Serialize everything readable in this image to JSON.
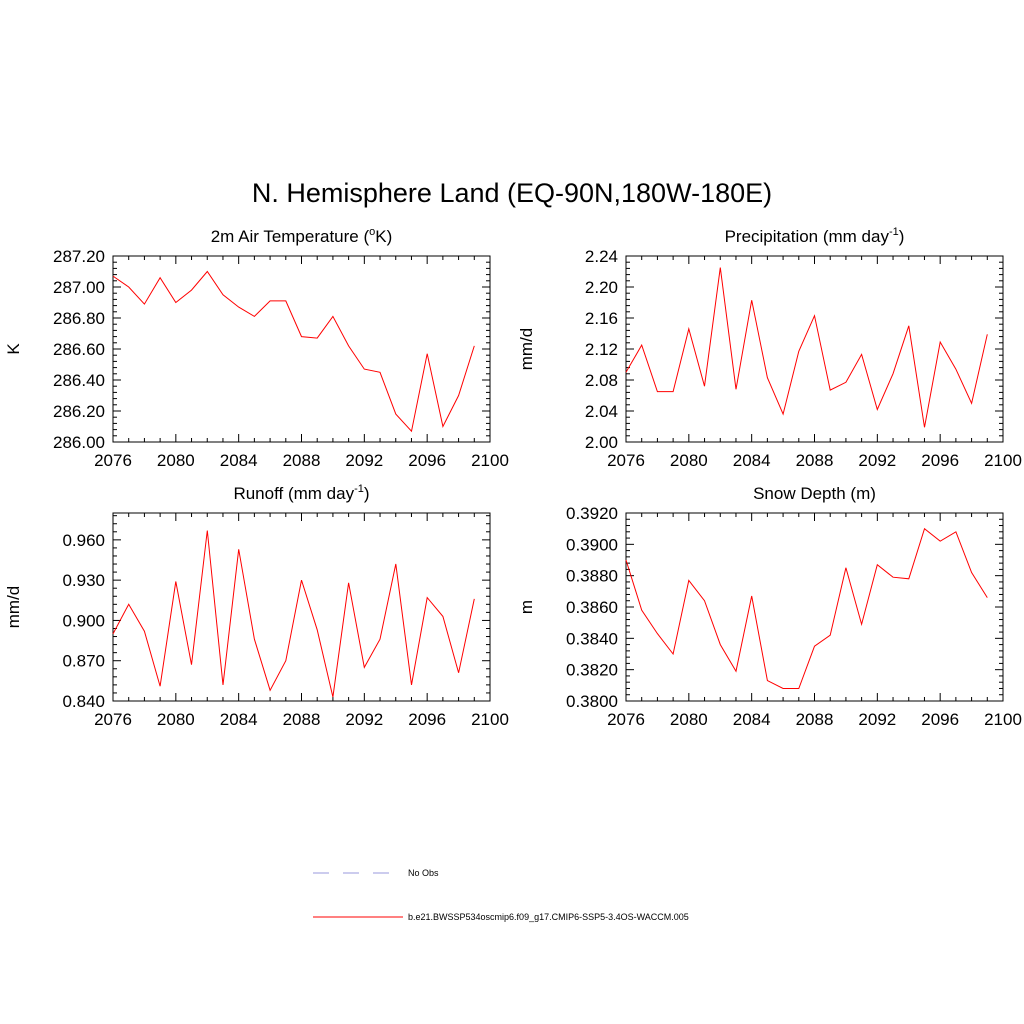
{
  "figure_title": "N. Hemisphere Land (EQ-90N,180W-180E)",
  "colors": {
    "model": "#ff0000",
    "obs": "#9999dd",
    "axis": "#000000"
  },
  "legend": {
    "obs_label": "No Obs",
    "model_label": "b.e21.BWSSP534oscmip6.f09_g17.CMIP6-SSP5-3.4OS-WACCM.005"
  },
  "chart_data": [
    {
      "type": "line",
      "title_main": "2m Air Temperature (",
      "title_sup": "o",
      "title_end": "K)",
      "ylabel": "K",
      "xlim": [
        2076,
        2100
      ],
      "ylim": [
        286.0,
        287.2
      ],
      "x_ticks": [
        2076,
        2080,
        2084,
        2088,
        2092,
        2096,
        2100
      ],
      "x_tick_labels": [
        "2076",
        "2080",
        "2084",
        "2088",
        "2092",
        "2096",
        "2100"
      ],
      "y_ticks": [
        286.0,
        286.2,
        286.4,
        286.6,
        286.8,
        287.0,
        287.2
      ],
      "y_tick_labels": [
        "286.00",
        "286.20",
        "286.40",
        "286.60",
        "286.80",
        "287.00",
        "287.20"
      ],
      "x": [
        2076,
        2077,
        2078,
        2079,
        2080,
        2081,
        2082,
        2083,
        2084,
        2085,
        2086,
        2087,
        2088,
        2089,
        2090,
        2091,
        2092,
        2093,
        2094,
        2095,
        2096,
        2097,
        2098,
        2099
      ],
      "y": [
        287.07,
        287.0,
        286.89,
        287.06,
        286.9,
        286.98,
        287.1,
        286.95,
        286.87,
        286.81,
        286.91,
        286.91,
        286.68,
        286.67,
        286.81,
        286.62,
        286.47,
        286.45,
        286.18,
        286.07,
        286.57,
        286.1,
        286.3,
        286.62
      ]
    },
    {
      "type": "line",
      "title_main": "Precipitation (mm day",
      "title_sup": "-1",
      "title_end": ")",
      "ylabel": "mm/d",
      "xlim": [
        2076,
        2100
      ],
      "ylim": [
        2.0,
        2.24
      ],
      "x_ticks": [
        2076,
        2080,
        2084,
        2088,
        2092,
        2096,
        2100
      ],
      "x_tick_labels": [
        "2076",
        "2080",
        "2084",
        "2088",
        "2092",
        "2096",
        "2100"
      ],
      "y_ticks": [
        2.0,
        2.04,
        2.08,
        2.12,
        2.16,
        2.2,
        2.24
      ],
      "y_tick_labels": [
        "2.00",
        "2.04",
        "2.08",
        "2.12",
        "2.16",
        "2.20",
        "2.24"
      ],
      "x": [
        2076,
        2077,
        2078,
        2079,
        2080,
        2081,
        2082,
        2083,
        2084,
        2085,
        2086,
        2087,
        2088,
        2089,
        2090,
        2091,
        2092,
        2093,
        2094,
        2095,
        2096,
        2097,
        2098,
        2099
      ],
      "y": [
        2.09,
        2.125,
        2.065,
        2.065,
        2.146,
        2.072,
        2.225,
        2.068,
        2.183,
        2.083,
        2.036,
        2.117,
        2.163,
        2.067,
        2.077,
        2.113,
        2.042,
        2.088,
        2.15,
        2.019,
        2.129,
        2.094,
        2.05,
        2.139
      ]
    },
    {
      "type": "line",
      "title_main": "Runoff (mm day",
      "title_sup": "-1",
      "title_end": ")",
      "ylabel": "mm/d",
      "xlim": [
        2076,
        2100
      ],
      "ylim": [
        0.84,
        0.98
      ],
      "x_ticks": [
        2076,
        2080,
        2084,
        2088,
        2092,
        2096,
        2100
      ],
      "x_tick_labels": [
        "2076",
        "2080",
        "2084",
        "2088",
        "2092",
        "2096",
        "2100"
      ],
      "y_ticks": [
        0.84,
        0.87,
        0.9,
        0.93,
        0.96
      ],
      "y_tick_labels": [
        "0.840",
        "0.870",
        "0.900",
        "0.930",
        "0.960"
      ],
      "x": [
        2076,
        2077,
        2078,
        2079,
        2080,
        2081,
        2082,
        2083,
        2084,
        2085,
        2086,
        2087,
        2088,
        2089,
        2090,
        2091,
        2092,
        2093,
        2094,
        2095,
        2096,
        2097,
        2098,
        2099
      ],
      "y": [
        0.89,
        0.912,
        0.892,
        0.851,
        0.929,
        0.867,
        0.967,
        0.852,
        0.953,
        0.886,
        0.848,
        0.87,
        0.93,
        0.893,
        0.843,
        0.928,
        0.865,
        0.886,
        0.942,
        0.852,
        0.917,
        0.903,
        0.861,
        0.916
      ]
    },
    {
      "type": "line",
      "title_main": "Snow Depth (m)",
      "title_sup": "",
      "title_end": "",
      "ylabel": "m",
      "xlim": [
        2076,
        2100
      ],
      "ylim": [
        0.38,
        0.392
      ],
      "x_ticks": [
        2076,
        2080,
        2084,
        2088,
        2092,
        2096,
        2100
      ],
      "x_tick_labels": [
        "2076",
        "2080",
        "2084",
        "2088",
        "2092",
        "2096",
        "2100"
      ],
      "y_ticks": [
        0.38,
        0.382,
        0.384,
        0.386,
        0.388,
        0.39,
        0.392
      ],
      "y_tick_labels": [
        "0.3800",
        "0.3820",
        "0.3840",
        "0.3860",
        "0.3880",
        "0.3900",
        "0.3920"
      ],
      "x": [
        2076,
        2077,
        2078,
        2079,
        2080,
        2081,
        2082,
        2083,
        2084,
        2085,
        2086,
        2087,
        2088,
        2089,
        2090,
        2091,
        2092,
        2093,
        2094,
        2095,
        2096,
        2097,
        2098,
        2099
      ],
      "y": [
        0.389,
        0.3858,
        0.3843,
        0.383,
        0.3877,
        0.3864,
        0.3836,
        0.3819,
        0.3867,
        0.3813,
        0.3808,
        0.3808,
        0.3835,
        0.3842,
        0.3885,
        0.3849,
        0.3887,
        0.3879,
        0.3878,
        0.391,
        0.3902,
        0.3908,
        0.3882,
        0.3866
      ]
    }
  ]
}
